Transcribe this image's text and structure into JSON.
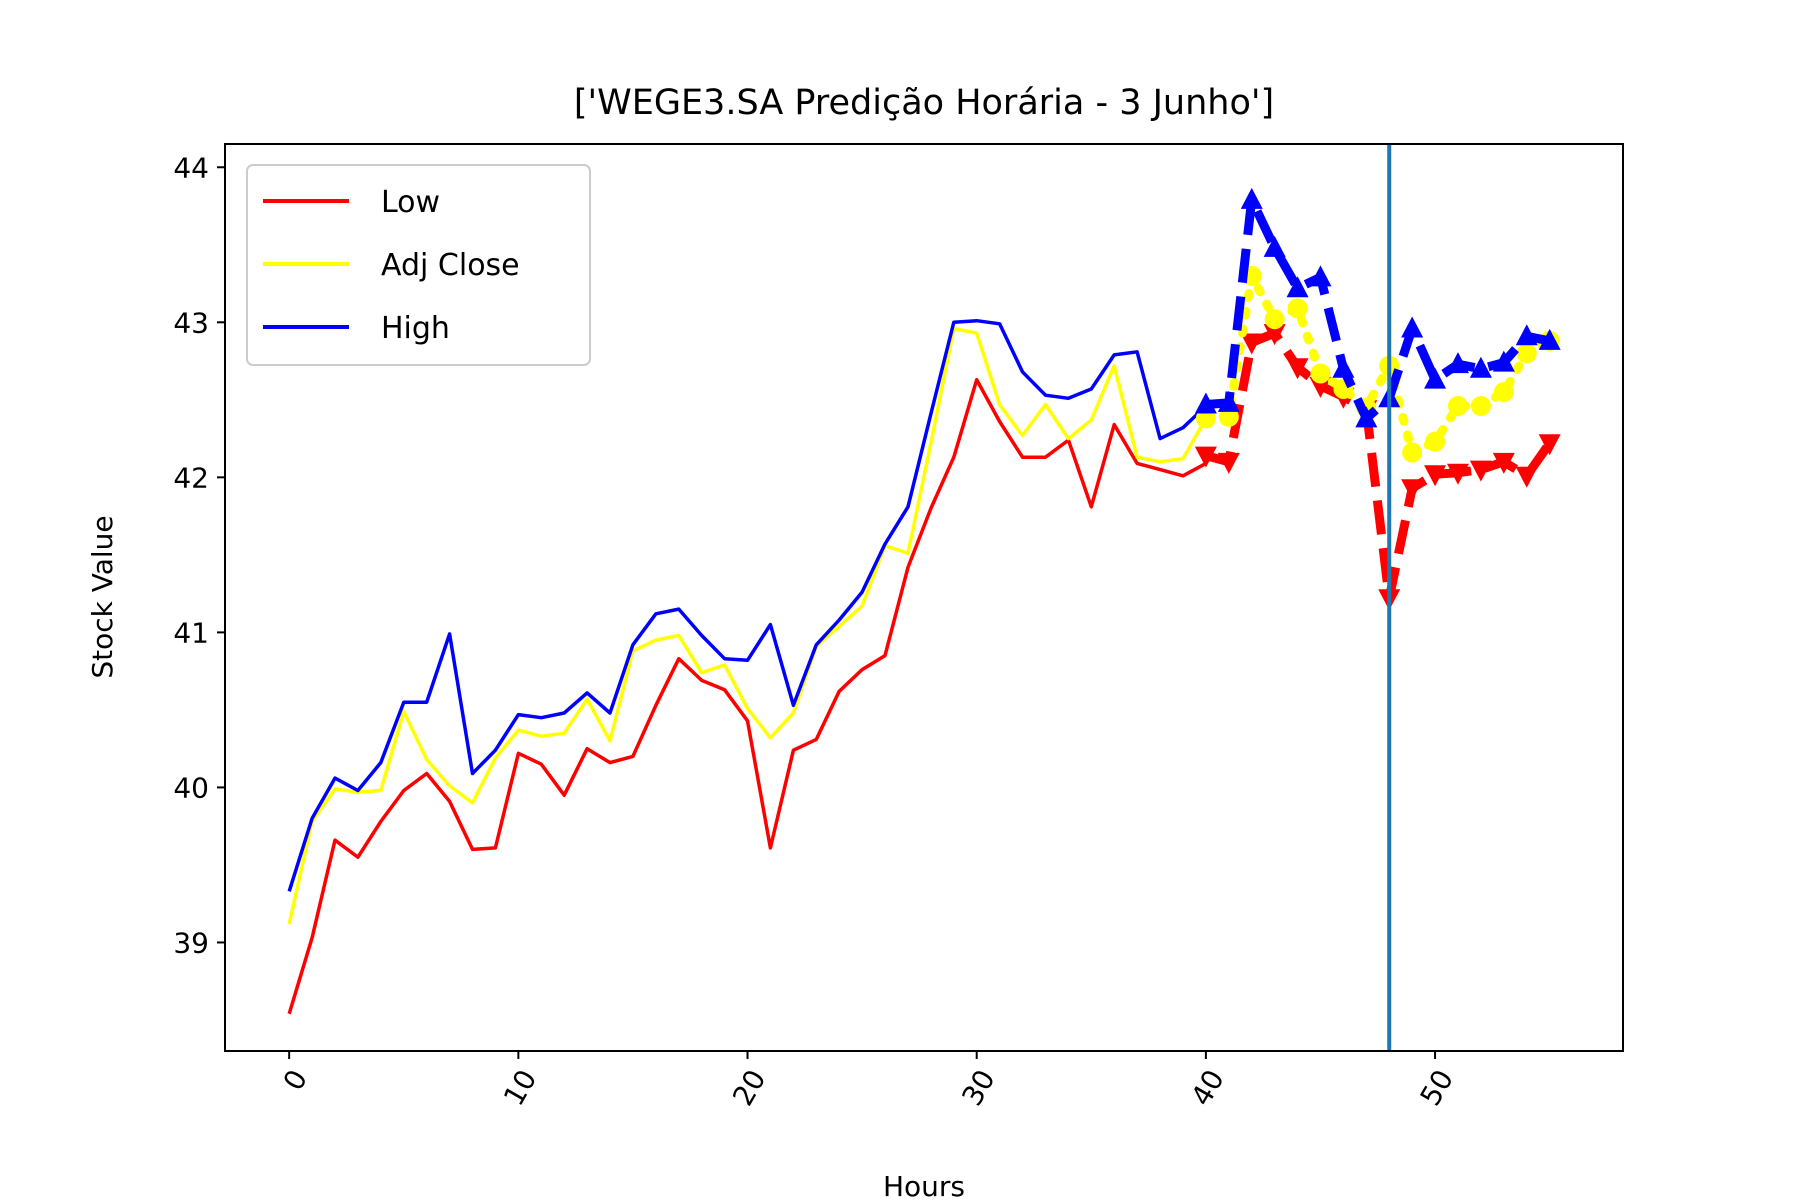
{
  "chart_data": {
    "type": "line",
    "title": "['WEGE3.SA Predição Horária - 3 Junho']",
    "xlabel": "Hours",
    "ylabel": "Stock Value",
    "xlim": [
      -2.8,
      58.2
    ],
    "ylim": [
      38.3,
      44.15
    ],
    "xticks": [
      0,
      10,
      20,
      30,
      40,
      50
    ],
    "yticks": [
      39,
      40,
      41,
      42,
      43,
      44
    ],
    "xtick_rotation_deg": 60,
    "grid": false,
    "legend_position": "upper-left",
    "vline": {
      "x": 48,
      "color": "#1f77b4"
    },
    "series": [
      {
        "name": "Low",
        "color": "#ff0000",
        "style": "solid",
        "x": [
          0,
          1,
          2,
          3,
          4,
          5,
          6,
          7,
          8,
          9,
          10,
          11,
          12,
          13,
          14,
          15,
          16,
          17,
          18,
          19,
          20,
          21,
          22,
          23,
          24,
          25,
          26,
          27,
          28,
          29,
          30,
          31,
          32,
          33,
          34,
          35,
          36,
          37,
          38,
          39,
          40
        ],
        "y": [
          38.54,
          39.03,
          39.66,
          39.55,
          39.78,
          39.98,
          40.09,
          39.91,
          39.6,
          39.61,
          40.22,
          40.15,
          39.95,
          40.25,
          40.16,
          40.2,
          40.53,
          40.83,
          40.69,
          40.63,
          40.43,
          39.61,
          40.24,
          40.31,
          40.62,
          40.76,
          40.85,
          41.42,
          41.8,
          42.13,
          42.63,
          42.36,
          42.13,
          42.13,
          42.24,
          41.81,
          42.34,
          42.09,
          42.05,
          42.01,
          42.09
        ]
      },
      {
        "name": "Adj Close",
        "color": "#ffff00",
        "style": "solid",
        "x": [
          0,
          1,
          2,
          3,
          4,
          5,
          6,
          7,
          8,
          9,
          10,
          11,
          12,
          13,
          14,
          15,
          16,
          17,
          18,
          19,
          20,
          21,
          22,
          23,
          24,
          25,
          26,
          27,
          28,
          29,
          30,
          31,
          32,
          33,
          34,
          35,
          36,
          37,
          38,
          39,
          40
        ],
        "y": [
          39.12,
          39.78,
          39.99,
          39.97,
          39.98,
          40.49,
          40.18,
          40.01,
          39.9,
          40.19,
          40.37,
          40.33,
          40.35,
          40.57,
          40.3,
          40.88,
          40.95,
          40.98,
          40.74,
          40.79,
          40.51,
          40.32,
          40.48,
          40.91,
          41.04,
          41.17,
          41.56,
          41.51,
          42.22,
          42.96,
          42.93,
          42.47,
          42.27,
          42.47,
          42.25,
          42.37,
          42.72,
          42.13,
          42.1,
          42.12,
          42.38
        ]
      },
      {
        "name": "High",
        "color": "#0000ff",
        "style": "solid",
        "x": [
          0,
          1,
          2,
          3,
          4,
          5,
          6,
          7,
          8,
          9,
          10,
          11,
          12,
          13,
          14,
          15,
          16,
          17,
          18,
          19,
          20,
          21,
          22,
          23,
          24,
          25,
          26,
          27,
          28,
          29,
          30,
          31,
          32,
          33,
          34,
          35,
          36,
          37,
          38,
          39,
          40
        ],
        "y": [
          39.33,
          39.8,
          40.06,
          39.98,
          40.16,
          40.55,
          40.55,
          40.99,
          40.09,
          40.24,
          40.47,
          40.45,
          40.48,
          40.61,
          40.48,
          40.92,
          41.12,
          41.15,
          40.98,
          40.83,
          40.82,
          41.05,
          40.53,
          40.92,
          41.08,
          41.26,
          41.57,
          41.81,
          42.41,
          43.0,
          43.01,
          42.99,
          42.68,
          42.53,
          42.51,
          42.57,
          42.79,
          42.81,
          42.25,
          42.32,
          42.46
        ]
      },
      {
        "name": "",
        "color": "#ff0000",
        "style": "dashed",
        "marker": "triangle-down",
        "x": [
          40,
          41,
          42,
          43,
          44,
          45,
          46,
          47,
          48,
          49,
          50,
          51,
          52,
          53,
          54,
          55
        ],
        "y": [
          42.14,
          42.1,
          42.87,
          42.93,
          42.71,
          42.59,
          42.52,
          42.44,
          41.22,
          41.93,
          42.02,
          42.03,
          42.05,
          42.1,
          42.01,
          42.22
        ]
      },
      {
        "name": "",
        "color": "#ffff00",
        "style": "dotted",
        "marker": "circle",
        "x": [
          40,
          41,
          42,
          43,
          44,
          45,
          46,
          47,
          48,
          49,
          50,
          51,
          52,
          53,
          54,
          55
        ],
        "y": [
          42.38,
          42.39,
          43.3,
          43.02,
          43.09,
          42.67,
          42.57,
          42.45,
          42.72,
          42.16,
          42.23,
          42.46,
          42.46,
          42.55,
          42.8,
          42.88
        ]
      },
      {
        "name": "",
        "color": "#0000ff",
        "style": "dashed",
        "marker": "triangle-up",
        "x": [
          40,
          41,
          42,
          43,
          44,
          45,
          46,
          47,
          48,
          49,
          50,
          51,
          52,
          53,
          54,
          55
        ],
        "y": [
          42.47,
          42.48,
          43.79,
          43.48,
          43.22,
          43.29,
          42.7,
          42.38,
          42.51,
          42.96,
          42.63,
          42.73,
          42.7,
          42.74,
          42.91,
          42.88
        ]
      }
    ],
    "legend": [
      {
        "label": "Low",
        "color": "#ff0000"
      },
      {
        "label": "Adj Close",
        "color": "#ffff00"
      },
      {
        "label": "High",
        "color": "#0000ff"
      }
    ]
  }
}
